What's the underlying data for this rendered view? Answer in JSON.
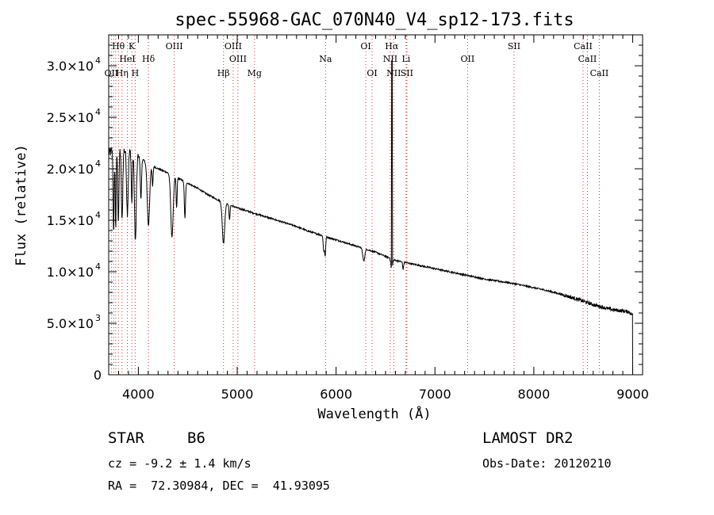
{
  "chart_data": {
    "type": "line",
    "title": "spec-55968-GAC_070N40_V4_sp12-173.fits",
    "xlabel": "Wavelength (Å)",
    "ylabel": "Flux (relative)",
    "xlim": [
      3700,
      9100
    ],
    "ylim": [
      0,
      33000
    ],
    "xticks": [
      {
        "value": 4000,
        "label": "4000"
      },
      {
        "value": 5000,
        "label": "5000"
      },
      {
        "value": 6000,
        "label": "6000"
      },
      {
        "value": 7000,
        "label": "7000"
      },
      {
        "value": 8000,
        "label": "8000"
      },
      {
        "value": 9000,
        "label": "9000"
      }
    ],
    "yticks": [
      {
        "value": 0,
        "label": "0"
      },
      {
        "value": 5000,
        "label": "5.0×10",
        "exp": "3"
      },
      {
        "value": 10000,
        "label": "1.0×10",
        "exp": "4"
      },
      {
        "value": 15000,
        "label": "1.5×10",
        "exp": "4"
      },
      {
        "value": 20000,
        "label": "2.0×10",
        "exp": "4"
      },
      {
        "value": 25000,
        "label": "2.5×10",
        "exp": "4"
      },
      {
        "value": 30000,
        "label": "3.0×10",
        "exp": "4"
      }
    ],
    "grid": false,
    "continuum": [
      {
        "x": 3700,
        "y": 21500
      },
      {
        "x": 3800,
        "y": 22000
      },
      {
        "x": 3900,
        "y": 21700
      },
      {
        "x": 4000,
        "y": 21200
      },
      {
        "x": 4100,
        "y": 20500
      },
      {
        "x": 4200,
        "y": 20000
      },
      {
        "x": 4300,
        "y": 19600
      },
      {
        "x": 4400,
        "y": 19100
      },
      {
        "x": 4500,
        "y": 18600
      },
      {
        "x": 4600,
        "y": 18100
      },
      {
        "x": 4700,
        "y": 17500
      },
      {
        "x": 4800,
        "y": 17000
      },
      {
        "x": 4900,
        "y": 16600
      },
      {
        "x": 5000,
        "y": 16200
      },
      {
        "x": 5100,
        "y": 15900
      },
      {
        "x": 5200,
        "y": 15600
      },
      {
        "x": 5300,
        "y": 15300
      },
      {
        "x": 5400,
        "y": 15000
      },
      {
        "x": 5500,
        "y": 14700
      },
      {
        "x": 5600,
        "y": 14400
      },
      {
        "x": 5700,
        "y": 14000
      },
      {
        "x": 5800,
        "y": 13700
      },
      {
        "x": 5900,
        "y": 13400
      },
      {
        "x": 6000,
        "y": 13100
      },
      {
        "x": 6100,
        "y": 12800
      },
      {
        "x": 6200,
        "y": 12500
      },
      {
        "x": 6300,
        "y": 12200
      },
      {
        "x": 6400,
        "y": 11900
      },
      {
        "x": 6500,
        "y": 11500
      },
      {
        "x": 6600,
        "y": 11100
      },
      {
        "x": 6700,
        "y": 10900
      },
      {
        "x": 6800,
        "y": 10700
      },
      {
        "x": 6900,
        "y": 10500
      },
      {
        "x": 7000,
        "y": 10300
      },
      {
        "x": 7100,
        "y": 10100
      },
      {
        "x": 7200,
        "y": 9900
      },
      {
        "x": 7300,
        "y": 9700
      },
      {
        "x": 7400,
        "y": 9500
      },
      {
        "x": 7500,
        "y": 9300
      },
      {
        "x": 7600,
        "y": 9150
      },
      {
        "x": 7700,
        "y": 9000
      },
      {
        "x": 7800,
        "y": 8850
      },
      {
        "x": 7900,
        "y": 8650
      },
      {
        "x": 8000,
        "y": 8450
      },
      {
        "x": 8100,
        "y": 8250
      },
      {
        "x": 8200,
        "y": 8000
      },
      {
        "x": 8300,
        "y": 7750
      },
      {
        "x": 8400,
        "y": 7450
      },
      {
        "x": 8500,
        "y": 7150
      },
      {
        "x": 8600,
        "y": 6800
      },
      {
        "x": 8700,
        "y": 6550
      },
      {
        "x": 8800,
        "y": 6300
      },
      {
        "x": 8900,
        "y": 6200
      },
      {
        "x": 8960,
        "y": 6100
      },
      {
        "x": 9000,
        "y": 5800
      }
    ],
    "absorption": [
      {
        "x": 3750,
        "depth": 8000,
        "width": 5
      },
      {
        "x": 3771,
        "depth": 7500,
        "width": 5
      },
      {
        "x": 3798,
        "depth": 7000,
        "width": 6
      },
      {
        "x": 3835,
        "depth": 7000,
        "width": 7
      },
      {
        "x": 3889,
        "depth": 6000,
        "width": 8
      },
      {
        "x": 3934,
        "depth": 5000,
        "width": 5
      },
      {
        "x": 3970,
        "depth": 8500,
        "width": 9
      },
      {
        "x": 4026,
        "depth": 4000,
        "width": 6
      },
      {
        "x": 4102,
        "depth": 6000,
        "width": 12
      },
      {
        "x": 4144,
        "depth": 2000,
        "width": 5
      },
      {
        "x": 4340,
        "depth": 6000,
        "width": 12
      },
      {
        "x": 4387,
        "depth": 3000,
        "width": 5
      },
      {
        "x": 4471,
        "depth": 3500,
        "width": 6
      },
      {
        "x": 4861,
        "depth": 4000,
        "width": 12
      },
      {
        "x": 4922,
        "depth": 1500,
        "width": 5
      },
      {
        "x": 5876,
        "depth": 1500,
        "width": 6
      },
      {
        "x": 5890,
        "depth": 1800,
        "width": 5
      },
      {
        "x": 6280,
        "depth": 1200,
        "width": 10
      },
      {
        "x": 6563,
        "depth": 1000,
        "width": 8
      },
      {
        "x": 6678,
        "depth": 700,
        "width": 5
      }
    ],
    "emission": [
      {
        "x": 6565,
        "peak": 30500
      }
    ],
    "cutoff_x": 9000,
    "line_markers": [
      {
        "label": "Hθ",
        "x": 3798,
        "row": 1
      },
      {
        "label": "K",
        "x": 3934,
        "row": 1
      },
      {
        "label": "OIII",
        "x": 4363,
        "row": 1
      },
      {
        "label": "OIII",
        "x": 4959,
        "row": 1
      },
      {
        "label": "OI",
        "x": 6300,
        "row": 1
      },
      {
        "label": "Hα",
        "x": 6563,
        "row": 1
      },
      {
        "label": "SII",
        "x": 7800,
        "row": 1
      },
      {
        "label": "CaII",
        "x": 8498,
        "row": 1
      },
      {
        "label": "HeI",
        "x": 3889,
        "row": 2
      },
      {
        "label": "Hδ",
        "x": 4102,
        "row": 2
      },
      {
        "label": "OIII",
        "x": 5007,
        "row": 2
      },
      {
        "label": "Na",
        "x": 5893,
        "row": 2
      },
      {
        "label": "NII",
        "x": 6548,
        "row": 2
      },
      {
        "label": "Li",
        "x": 6708,
        "row": 2
      },
      {
        "label": "OII",
        "x": 7330,
        "row": 2
      },
      {
        "label": "CaII",
        "x": 8542,
        "row": 2
      },
      {
        "label": "OII",
        "x": 3727,
        "row": 3
      },
      {
        "label": "Hη",
        "x": 3835,
        "row": 3
      },
      {
        "label": "H",
        "x": 3968,
        "row": 3
      },
      {
        "label": "Hβ",
        "x": 4861,
        "row": 3
      },
      {
        "label": "Mg",
        "x": 5175,
        "row": 3
      },
      {
        "label": "OI",
        "x": 6364,
        "row": 3
      },
      {
        "label": "NII",
        "x": 6583,
        "row": 3
      },
      {
        "label": "SII",
        "x": 6716,
        "row": 3
      },
      {
        "label": "CaII",
        "x": 8662,
        "row": 3
      }
    ],
    "marker_lines_x": [
      3727,
      3750,
      3771,
      3798,
      3835,
      3889,
      3934,
      3968,
      4102,
      4363,
      4861,
      4959,
      5007,
      5175,
      5893,
      6300,
      6364,
      6548,
      6583,
      6708,
      6716,
      7330,
      7800,
      8498,
      8542,
      8662
    ]
  },
  "footer": {
    "object_class": "STAR",
    "subclass": "B6",
    "survey": "LAMOST DR2",
    "cz": "cz = -9.2 ± 1.4 km/s",
    "obs_date": "Obs-Date: 20120210",
    "coords": "RA =  72.30984, DEC =  41.93095"
  }
}
